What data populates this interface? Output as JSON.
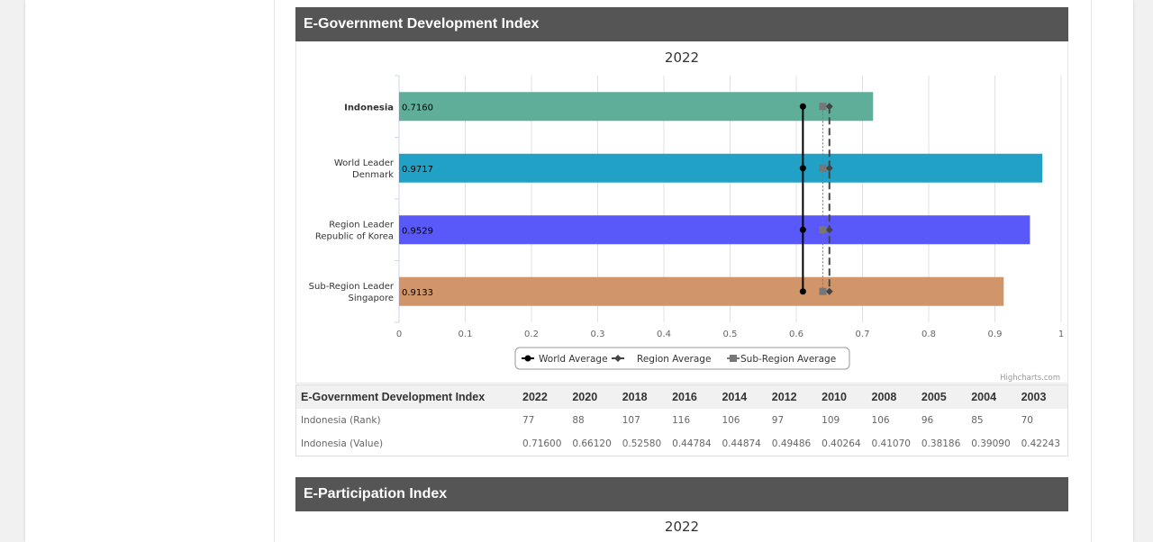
{
  "section1": {
    "title": "E-Government Development Index"
  },
  "section2": {
    "title": "E-Participation Index",
    "year_label": "2022"
  },
  "chart_data": {
    "type": "bar",
    "title": "2022",
    "categories": [
      [
        "Indonesia"
      ],
      [
        "World Leader",
        "Denmark"
      ],
      [
        "Region Leader",
        "Republic of Korea"
      ],
      [
        "Sub-Region Leader",
        "Singapore"
      ]
    ],
    "values": [
      0.716,
      0.9717,
      0.9529,
      0.9133
    ],
    "value_labels": [
      "0.7160",
      "0.9717",
      "0.9529",
      "0.9133"
    ],
    "bar_colors": [
      "#5fae99",
      "#22a1c7",
      "#5959fa",
      "#d0966a"
    ],
    "xlim": [
      0,
      1
    ],
    "x_ticks": [
      "0",
      "0.1",
      "0.2",
      "0.3",
      "0.4",
      "0.5",
      "0.6",
      "0.7",
      "0.8",
      "0.9",
      "1"
    ],
    "series": [
      {
        "name": "World Average",
        "type": "line",
        "value": 0.61,
        "color": "#000000"
      },
      {
        "name": "Region Average",
        "type": "line",
        "value": 0.65,
        "color": "#444444"
      },
      {
        "name": "Sub-Region Average",
        "type": "line",
        "value": 0.64,
        "color": "#777777"
      }
    ],
    "credit": "Highcharts.com"
  },
  "table": {
    "header": [
      "E-Government Development Index",
      "2022",
      "2020",
      "2018",
      "2016",
      "2014",
      "2012",
      "2010",
      "2008",
      "2005",
      "2004",
      "2003"
    ],
    "rows": [
      [
        "Indonesia (Rank)",
        "77",
        "88",
        "107",
        "116",
        "106",
        "97",
        "109",
        "106",
        "96",
        "85",
        "70"
      ],
      [
        "Indonesia (Value)",
        "0.71600",
        "0.66120",
        "0.52580",
        "0.44784",
        "0.44874",
        "0.49486",
        "0.40264",
        "0.41070",
        "0.38186",
        "0.39090",
        "0.42243"
      ]
    ]
  }
}
